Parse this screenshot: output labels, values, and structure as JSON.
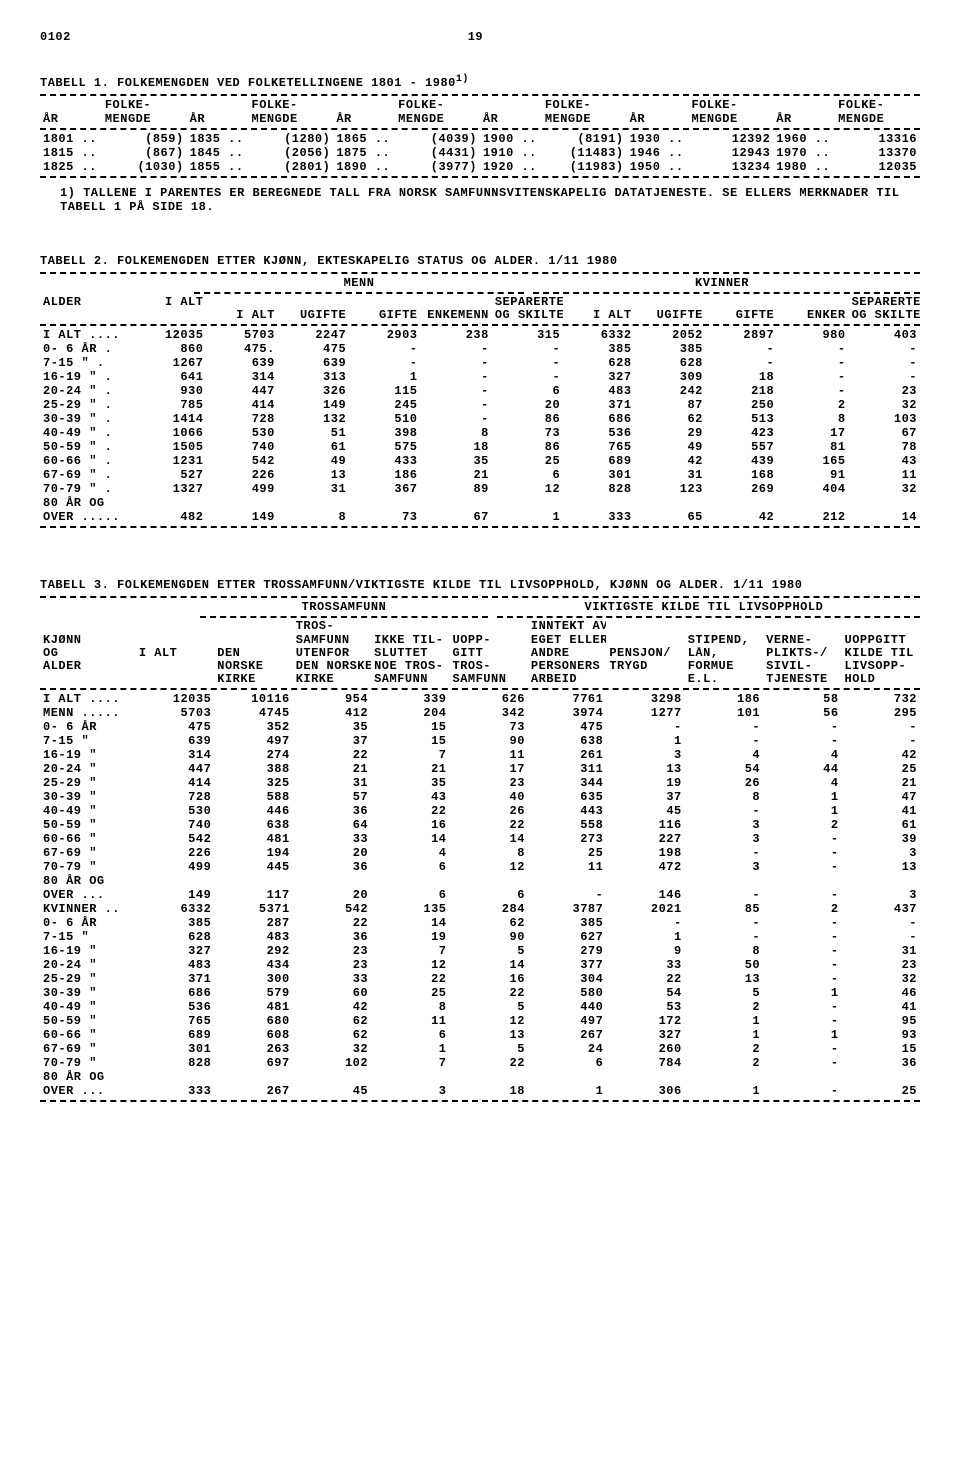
{
  "page_code": "0102",
  "page_num": "19",
  "sup1": "1)",
  "t1": {
    "title": "TABELL 1.  FOLKEMENGDEN VED FOLKETELLINGENE 1801 - 1980",
    "col_yr": "ÅR",
    "col_val_a": "FOLKE-",
    "col_val_b": "MENGDE",
    "rows": [
      [
        "1801 ..",
        "(859)",
        "1835 ..",
        "(1280)",
        "1865 ..",
        "(4039)",
        "1900 ..",
        "(8191)",
        "1930 ..",
        "12392",
        "1960 ..",
        "13316"
      ],
      [
        "1815 ..",
        "(867)",
        "1845 ..",
        "(2056)",
        "1875 ..",
        "(4431)",
        "1910 ..",
        "(11483)",
        "1946 ..",
        "12943",
        "1970 ..",
        "13370"
      ],
      [
        "1825 ..",
        "(1030)",
        "1855 ..",
        "(2801)",
        "1890 ..",
        "(3977)",
        "1920 ..",
        "(11983)",
        "1950 ..",
        "13234",
        "1980 ..",
        "12035"
      ]
    ],
    "footnote": "1) TALLENE I PARENTES ER BEREGNEDE TALL FRA NORSK SAMFUNNSVITENSKAPELIG DATATJENESTE.  SE ELLERS MERKNADER TIL TABELL 1 PÅ SIDE 18."
  },
  "t2": {
    "title": "TABELL 2.  FOLKEMENGDEN ETTER KJØNN, EKTESKAPELIG STATUS OG ALDER.  1/11 1980",
    "grp_menn": "MENN",
    "grp_kvin": "KVINNER",
    "h_alder": "ALDER",
    "h_ialt": "I ALT",
    "h_ugifte": "UGIFTE",
    "h_gifte": "GIFTE",
    "h_enkemenn": "ENKEMENN",
    "h_enker": "ENKER",
    "h_sep_a": "SEPARERTE",
    "h_sep_b": "OG SKILTE",
    "rows": [
      [
        "I ALT ....",
        "12035",
        "5703",
        "2247",
        "2903",
        "238",
        "315",
        "6332",
        "2052",
        "2897",
        "980",
        "403"
      ],
      [
        "0- 6 ÅR .",
        "860",
        "475.",
        "475",
        "-",
        "-",
        "-",
        "385",
        "385",
        "-",
        "-",
        "-"
      ],
      [
        "7-15 \"  .",
        "1267",
        "639",
        "639",
        "-",
        "-",
        "-",
        "628",
        "628",
        "-",
        "-",
        "-"
      ],
      [
        "16-19 \" .",
        "641",
        "314",
        "313",
        "1",
        "-",
        "-",
        "327",
        "309",
        "18",
        "-",
        "-"
      ],
      [
        "20-24 \" .",
        "930",
        "447",
        "326",
        "115",
        "-",
        "6",
        "483",
        "242",
        "218",
        "-",
        "23"
      ],
      [
        "25-29 \" .",
        "785",
        "414",
        "149",
        "245",
        "-",
        "20",
        "371",
        "87",
        "250",
        "2",
        "32"
      ],
      [
        "30-39 \" .",
        "1414",
        "728",
        "132",
        "510",
        "-",
        "86",
        "686",
        "62",
        "513",
        "8",
        "103"
      ],
      [
        "40-49 \" .",
        "1066",
        "530",
        "51",
        "398",
        "8",
        "73",
        "536",
        "29",
        "423",
        "17",
        "67"
      ],
      [
        "50-59 \" .",
        "1505",
        "740",
        "61",
        "575",
        "18",
        "86",
        "765",
        "49",
        "557",
        "81",
        "78"
      ],
      [
        "60-66 \" .",
        "1231",
        "542",
        "49",
        "433",
        "35",
        "25",
        "689",
        "42",
        "439",
        "165",
        "43"
      ],
      [
        "67-69 \" .",
        "527",
        "226",
        "13",
        "186",
        "21",
        "6",
        "301",
        "31",
        "168",
        "91",
        "11"
      ],
      [
        "70-79 \" .",
        "1327",
        "499",
        "31",
        "367",
        "89",
        "12",
        "828",
        "123",
        "269",
        "404",
        "32"
      ],
      [
        "80 ÅR OG",
        "",
        "",
        "",
        "",
        "",
        "",
        "",
        "",
        "",
        "",
        ""
      ],
      [
        "OVER .....",
        "482",
        "149",
        "8",
        "73",
        "67",
        "1",
        "333",
        "65",
        "42",
        "212",
        "14"
      ]
    ]
  },
  "t3": {
    "title": "TABELL 3.  FOLKEMENGDEN ETTER TROSSAMFUNN/VIKTIGSTE KILDE TIL LIVSOPPHOLD, KJØNN OG ALDER.  1/11 1980",
    "grp_tros": "TROSSAMFUNN",
    "grp_kilde": "VIKTIGSTE KILDE TIL LIVSOPPHOLD",
    "h_kjonn_a": "KJØNN",
    "h_kjonn_b": "OG",
    "h_kjonn_c": "ALDER",
    "h_ialt": "I ALT",
    "h_c1_a": "DEN",
    "h_c1_b": "NORSKE",
    "h_c1_c": "KIRKE",
    "h_c2_a": "TROS-",
    "h_c2_b": "SAMFUNN",
    "h_c2_c": "UTENFOR",
    "h_c2_d": "DEN NORSKE",
    "h_c2_e": "KIRKE",
    "h_c3_a": "IKKE TIL-",
    "h_c3_b": "SLUTTET",
    "h_c3_c": "NOE TROS-",
    "h_c3_d": "SAMFUNN",
    "h_c4_a": "UOPP-",
    "h_c4_b": "GITT",
    "h_c4_c": "TROS-",
    "h_c4_d": "SAMFUNN",
    "h_c5_a": "INNTEKT AV",
    "h_c5_b": "EGET ELLER",
    "h_c5_c": "ANDRE",
    "h_c5_d": "PERSONERS",
    "h_c5_e": "ARBEID",
    "h_c6_a": "PENSJON/",
    "h_c6_b": "TRYGD",
    "h_c7_a": "STIPEND,",
    "h_c7_b": "LÅN,",
    "h_c7_c": "FORMUE",
    "h_c7_d": "E.L.",
    "h_c8_a": "VERNE-",
    "h_c8_b": "PLIKTS-/",
    "h_c8_c": "SIVIL-",
    "h_c8_d": "TJENESTE",
    "h_c9_a": "UOPPGITT",
    "h_c9_b": "KILDE TIL",
    "h_c9_c": "LIVSOPP-",
    "h_c9_d": "HOLD",
    "rows": [
      [
        "I ALT ....",
        "12035",
        "10116",
        "954",
        "339",
        "626",
        "7761",
        "3298",
        "186",
        "58",
        "732"
      ],
      [
        "",
        "",
        "",
        "",
        "",
        "",
        "",
        "",
        "",
        "",
        ""
      ],
      [
        "MENN .....",
        "5703",
        "4745",
        "412",
        "204",
        "342",
        "3974",
        "1277",
        "101",
        "56",
        "295"
      ],
      [
        "  0- 6 ÅR",
        "475",
        "352",
        "35",
        "15",
        "73",
        "475",
        "-",
        "-",
        "-",
        "-"
      ],
      [
        "  7-15 \"",
        "639",
        "497",
        "37",
        "15",
        "90",
        "638",
        "1",
        "-",
        "-",
        "-"
      ],
      [
        "  16-19 \"",
        "314",
        "274",
        "22",
        "7",
        "11",
        "261",
        "3",
        "4",
        "4",
        "42"
      ],
      [
        "  20-24 \"",
        "447",
        "388",
        "21",
        "21",
        "17",
        "311",
        "13",
        "54",
        "44",
        "25"
      ],
      [
        "  25-29 \"",
        "414",
        "325",
        "31",
        "35",
        "23",
        "344",
        "19",
        "26",
        "4",
        "21"
      ],
      [
        "  30-39 \"",
        "728",
        "588",
        "57",
        "43",
        "40",
        "635",
        "37",
        "8",
        "1",
        "47"
      ],
      [
        "  40-49 \"",
        "530",
        "446",
        "36",
        "22",
        "26",
        "443",
        "45",
        "-",
        "1",
        "41"
      ],
      [
        "  50-59 \"",
        "740",
        "638",
        "64",
        "16",
        "22",
        "558",
        "116",
        "3",
        "2",
        "61"
      ],
      [
        "  60-66 \"",
        "542",
        "481",
        "33",
        "14",
        "14",
        "273",
        "227",
        "3",
        "-",
        "39"
      ],
      [
        "  67-69 \"",
        "226",
        "194",
        "20",
        "4",
        "8",
        "25",
        "198",
        "-",
        "-",
        "3"
      ],
      [
        "  70-79 \"",
        "499",
        "445",
        "36",
        "6",
        "12",
        "11",
        "472",
        "3",
        "-",
        "13"
      ],
      [
        "  80 ÅR OG",
        "",
        "",
        "",
        "",
        "",
        "",
        "",
        "",
        "",
        ""
      ],
      [
        "  OVER ...",
        "149",
        "117",
        "20",
        "6",
        "6",
        "-",
        "146",
        "-",
        "-",
        "3"
      ],
      [
        "",
        "",
        "",
        "",
        "",
        "",
        "",
        "",
        "",
        "",
        ""
      ],
      [
        "KVINNER ..",
        "6332",
        "5371",
        "542",
        "135",
        "284",
        "3787",
        "2021",
        "85",
        "2",
        "437"
      ],
      [
        "  0- 6 ÅR",
        "385",
        "287",
        "22",
        "14",
        "62",
        "385",
        "-",
        "-",
        "-",
        "-"
      ],
      [
        "  7-15 \"",
        "628",
        "483",
        "36",
        "19",
        "90",
        "627",
        "1",
        "-",
        "-",
        "-"
      ],
      [
        "  16-19 \"",
        "327",
        "292",
        "23",
        "7",
        "5",
        "279",
        "9",
        "8",
        "-",
        "31"
      ],
      [
        "  20-24 \"",
        "483",
        "434",
        "23",
        "12",
        "14",
        "377",
        "33",
        "50",
        "-",
        "23"
      ],
      [
        "  25-29 \"",
        "371",
        "300",
        "33",
        "22",
        "16",
        "304",
        "22",
        "13",
        "-",
        "32"
      ],
      [
        "  30-39 \"",
        "686",
        "579",
        "60",
        "25",
        "22",
        "580",
        "54",
        "5",
        "1",
        "46"
      ],
      [
        "  40-49 \"",
        "536",
        "481",
        "42",
        "8",
        "5",
        "440",
        "53",
        "2",
        "-",
        "41"
      ],
      [
        "  50-59 \"",
        "765",
        "680",
        "62",
        "11",
        "12",
        "497",
        "172",
        "1",
        "-",
        "95"
      ],
      [
        "  60-66 \"",
        "689",
        "608",
        "62",
        "6",
        "13",
        "267",
        "327",
        "1",
        "1",
        "93"
      ],
      [
        "  67-69 \"",
        "301",
        "263",
        "32",
        "1",
        "5",
        "24",
        "260",
        "2",
        "-",
        "15"
      ],
      [
        "  70-79 \"",
        "828",
        "697",
        "102",
        "7",
        "22",
        "6",
        "784",
        "2",
        "-",
        "36"
      ],
      [
        "  80 ÅR OG",
        "",
        "",
        "",
        "",
        "",
        "",
        "",
        "",
        "",
        ""
      ],
      [
        "  OVER ...",
        "333",
        "267",
        "45",
        "3",
        "18",
        "1",
        "306",
        "1",
        "-",
        "25"
      ]
    ]
  }
}
